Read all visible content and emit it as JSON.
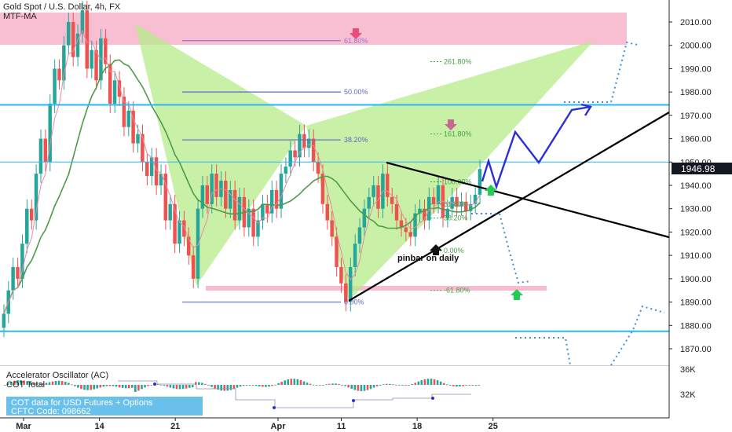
{
  "header": {
    "symbol": "Gold Spot / U.S. Dollar, 4h, FX",
    "indicator": "MTF-MA"
  },
  "colors": {
    "up_candle": "#26a69a",
    "down_candle": "#ef5350",
    "harmonic_fill": "#b5ec8a",
    "supply_zone": "#f8bbd0",
    "level_line": "#29b6f6",
    "projection": "#2b2fd6",
    "trendline": "#000000",
    "price_badge": "#131722"
  },
  "chart_data": {
    "type": "candlestick",
    "title": "Gold Spot / U.S. Dollar, 4h, FX",
    "y_axis": {
      "min": 1862,
      "max": 2018,
      "ticks": [
        2010,
        2000,
        1990,
        1980,
        1970,
        1960,
        1950,
        1940,
        1930,
        1920,
        1910,
        1900,
        1890,
        1880,
        1870
      ]
    },
    "y_tick_labels": [
      "2010.00",
      "2000.00",
      "1990.00",
      "1980.00",
      "1970.00",
      "1960.00",
      "1950.00",
      "1940.00",
      "1930.00",
      "1920.00",
      "1910.00",
      "1900.00",
      "1890.00",
      "1880.00",
      "1870.00"
    ],
    "x_tick_labels": [
      "Mar",
      "14",
      "21",
      "Apr",
      "11",
      "18",
      "25"
    ],
    "x_tick_pos": [
      0.0,
      24.0,
      48.0,
      80.5,
      100.5,
      124.5,
      148.5
    ],
    "x_range": [
      -4,
      168
    ],
    "current_price": "1946.98",
    "current_value": 1946.98,
    "close_series": [
      1885,
      1895,
      1905,
      1900,
      1915,
      1930,
      1925,
      1945,
      1960,
      1950,
      1975,
      1990,
      1985,
      2000,
      2010,
      1995,
      2005,
      2015,
      1990,
      1998,
      1985,
      2003,
      1992,
      1975,
      1985,
      1978,
      1965,
      1972,
      1958,
      1962,
      1950,
      1944,
      1952,
      1940,
      1945,
      1925,
      1932,
      1915,
      1925,
      1918,
      1910,
      1900,
      1930,
      1940,
      1932,
      1945,
      1935,
      1942,
      1930,
      1938,
      1925,
      1935,
      1922,
      1930,
      1918,
      1925,
      1932,
      1928,
      1938,
      1930,
      1945,
      1948,
      1955,
      1952,
      1962,
      1956,
      1960,
      1950,
      1945,
      1932,
      1925,
      1918,
      1905,
      1898,
      1890,
      1905,
      1915,
      1922,
      1930,
      1935,
      1940,
      1930,
      1945,
      1935,
      1932,
      1925,
      1922,
      1920,
      1918,
      1928,
      1930,
      1925,
      1935,
      1932,
      1940,
      1926,
      1930,
      1935,
      1931,
      1933,
      1929,
      1932,
      1936,
      1946.98
    ],
    "fib_upper": [
      {
        "label": "61.80%",
        "price": 2002,
        "color": "#9575cd"
      },
      {
        "label": "50.00%",
        "price": 1980,
        "color": "#5c6bc0"
      },
      {
        "label": "38.20%",
        "price": 1959.5,
        "color": "#5c6bc0"
      },
      {
        "label": "0.00%",
        "price": 1890,
        "color": "#5c6bc0"
      }
    ],
    "fib_lower": [
      {
        "label": "261.80%",
        "price": 1993,
        "color": "#43a047"
      },
      {
        "label": "161.80%",
        "price": 1962,
        "color": "#43a047"
      },
      {
        "label": "100.00%",
        "price": 1941.5,
        "color": "#43a047"
      },
      {
        "label": "61.80%",
        "price": 1932,
        "color": "#43a047"
      },
      {
        "label": "38.20%",
        "price": 1926,
        "color": "#43a047"
      },
      {
        "label": "0.00%",
        "price": 1912,
        "color": "#43a047"
      },
      {
        "label": "-61.80%",
        "price": 1895,
        "color": "#43a047"
      }
    ],
    "levels": [
      {
        "name": "resistance",
        "price": 1974.5
      },
      {
        "name": "support",
        "price": 1877.5
      },
      {
        "name": "pivot",
        "price": 1950
      }
    ],
    "annotations": [
      {
        "text": "pinbar on daily"
      }
    ]
  },
  "sub_panel": {
    "title": "Accelerator Oscillator (AC)",
    "cot": "COT Total",
    "box_line1": "COT data for USD Futures + Options",
    "box_line2": "CFTC Code: 098662",
    "ticks": [
      "36K",
      "32K"
    ]
  }
}
